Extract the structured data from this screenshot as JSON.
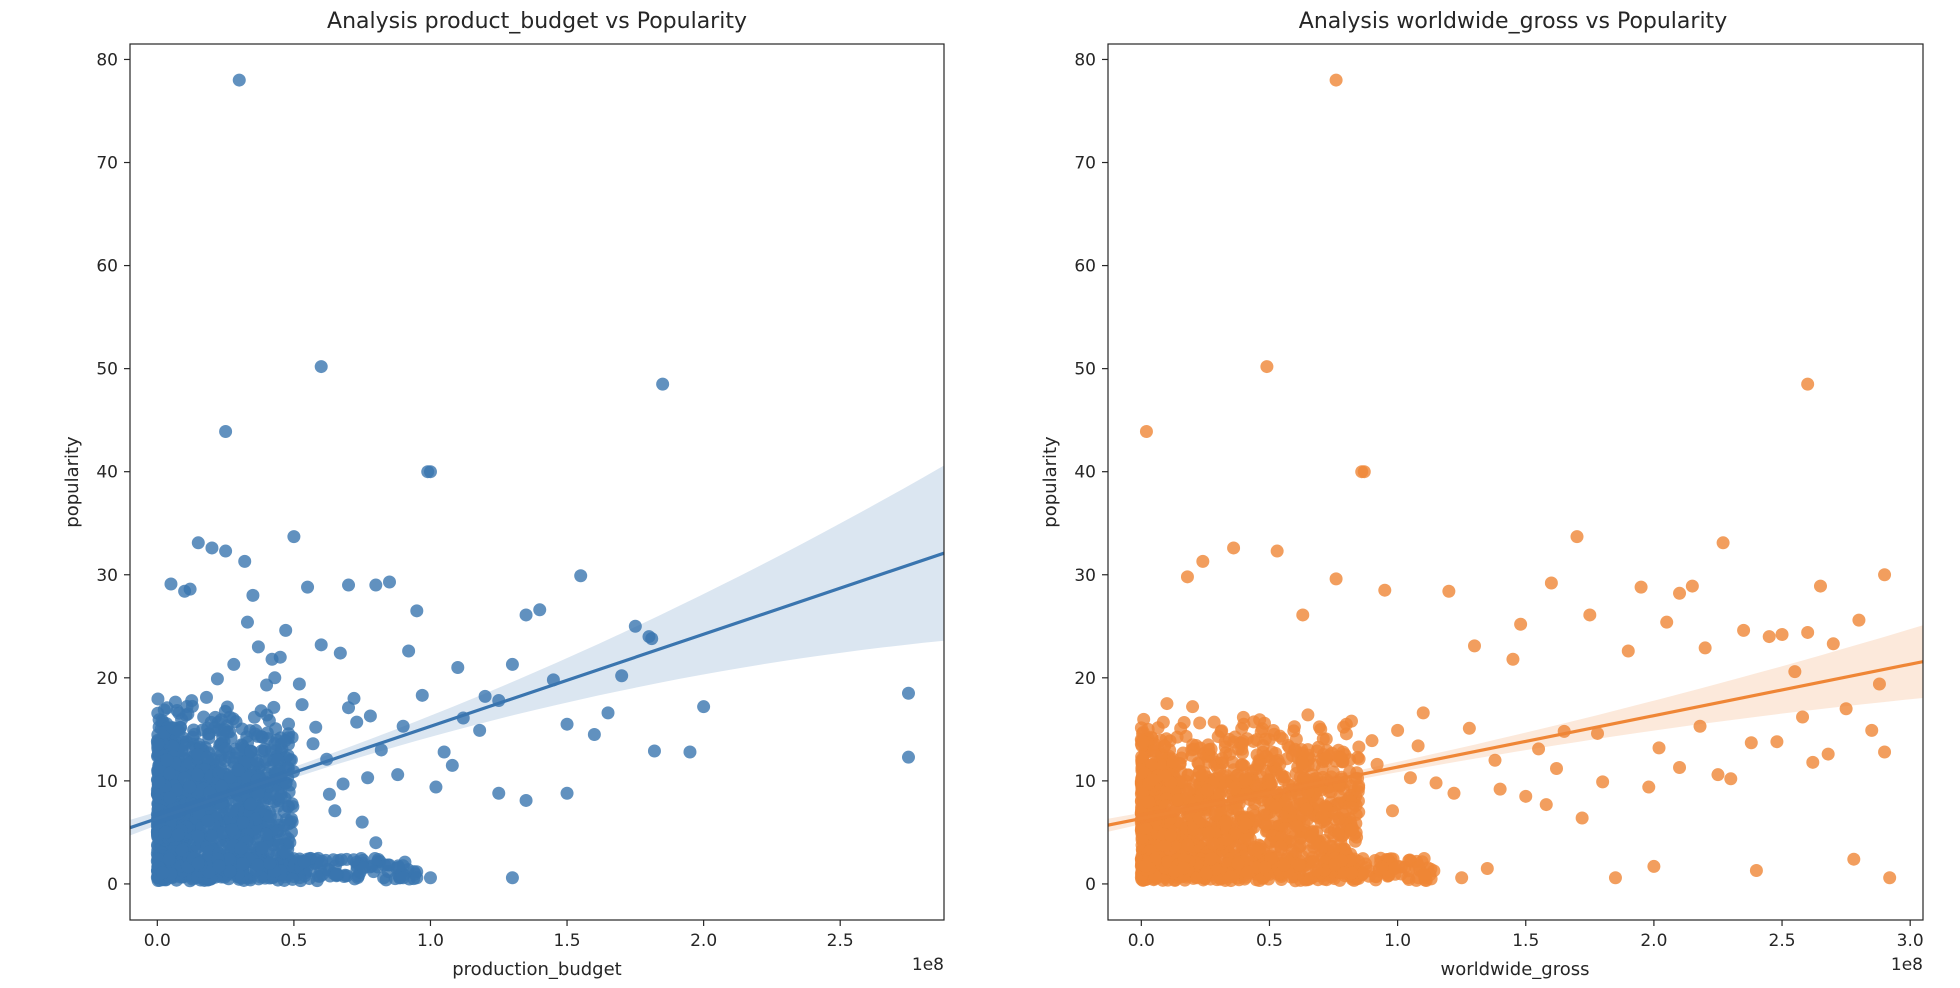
{
  "chart_data": [
    {
      "type": "scatter",
      "title": "Analysis product_budget vs Popularity",
      "xlabel": "production_budget",
      "ylabel": "popularity",
      "x_offset_label": "1e8",
      "xlim": [
        -0.1,
        2.88
      ],
      "ylim": [
        -3.5,
        81.5
      ],
      "x_ticks": [
        0.0,
        0.5,
        1.0,
        1.5,
        2.0,
        2.5
      ],
      "x_tick_labels": [
        "0.0",
        "0.5",
        "1.0",
        "1.5",
        "2.0",
        "2.5"
      ],
      "y_ticks": [
        0,
        10,
        20,
        30,
        40,
        50,
        60,
        70,
        80
      ],
      "y_tick_labels": [
        "0",
        "10",
        "20",
        "30",
        "40",
        "50",
        "60",
        "70",
        "80"
      ],
      "color": "#3a75af",
      "grid": false,
      "regression": {
        "slope": 8.94,
        "intercept": 6.35,
        "ci_half_width_at_mean": 0.5,
        "x_mean": 0.35,
        "ci_growth": 1.25
      },
      "x": [
        0.3,
        0.6,
        0.25,
        1.85,
        0.99,
        1.0,
        0.5,
        0.15,
        0.2,
        0.25,
        0.32,
        0.05,
        0.1,
        0.12,
        0.35,
        0.55,
        0.7,
        0.8,
        0.85,
        0.95,
        1.55,
        1.75,
        1.8,
        1.81,
        1.7,
        1.4,
        1.35,
        1.3,
        1.1,
        1.2,
        1.25,
        1.45,
        1.5,
        1.6,
        1.65,
        2.0,
        1.95,
        1.82,
        2.75,
        2.75,
        1.3,
        1.35,
        1.5,
        1.25,
        0.9,
        0.95,
        1.0,
        0.8,
        0.75,
        0.65,
        0.45,
        0.4,
        0.38,
        0.28,
        0.22,
        0.18,
        0.08,
        0.03,
        0.02,
        0.15,
        0.6,
        0.7,
        0.9,
        1.05,
        0.42,
        0.47,
        0.52,
        0.58,
        0.62,
        0.68,
        0.72,
        0.78,
        0.82,
        0.88,
        0.92,
        0.97,
        1.02,
        1.08,
        1.12,
        1.18,
        0.33,
        0.37,
        0.43,
        0.48,
        0.53,
        0.57,
        0.63,
        0.67,
        0.73,
        0.77
      ],
      "y": [
        78,
        50.2,
        43.9,
        48.5,
        40,
        40,
        33.7,
        33.1,
        32.6,
        32.3,
        31.3,
        29.1,
        28.4,
        28.6,
        28,
        28.8,
        29,
        29,
        29.3,
        26.5,
        29.9,
        25,
        24,
        23.8,
        20.2,
        26.6,
        26.1,
        21.3,
        21,
        18.2,
        17.8,
        19.8,
        15.5,
        14.5,
        16.6,
        17.2,
        12.8,
        12.9,
        18.5,
        12.3,
        0.6,
        8.1,
        8.8,
        8.8,
        0.6,
        0.6,
        0.6,
        4,
        6,
        7.1,
        22,
        19.3,
        16.8,
        21.3,
        19.9,
        18.1,
        14.8,
        5,
        1.1,
        2,
        23.2,
        17.1,
        15.3,
        12.8,
        21.8,
        24.6,
        19.4,
        15.2,
        12.1,
        9.7,
        18,
        16.3,
        13,
        10.6,
        22.6,
        18.3,
        9.4,
        11.5,
        16.1,
        14.9,
        25.4,
        23,
        20,
        11.2,
        17.4,
        13.6,
        8.7,
        22.4,
        15.7,
        10.3
      ],
      "dense_cluster": {
        "x_range": [
          0,
          0.5
        ],
        "y_range": [
          0.3,
          18
        ],
        "count": 1200
      }
    },
    {
      "type": "scatter",
      "title": "Analysis worldwide_gross vs Popularity",
      "xlabel": "worldwide_gross",
      "ylabel": "popularity",
      "x_offset_label": "1e8",
      "xlim": [
        -0.13,
        3.05
      ],
      "ylim": [
        -3.5,
        81.5
      ],
      "x_ticks": [
        0.0,
        0.5,
        1.0,
        1.5,
        2.0,
        2.5,
        3.0
      ],
      "x_tick_labels": [
        "0.0",
        "0.5",
        "1.0",
        "1.5",
        "2.0",
        "2.5",
        "3.0"
      ],
      "y_ticks": [
        0,
        10,
        20,
        30,
        40,
        50,
        60,
        70,
        80
      ],
      "y_tick_labels": [
        "0",
        "10",
        "20",
        "30",
        "40",
        "50",
        "60",
        "70",
        "80"
      ],
      "color": "#ef8636",
      "grid": false,
      "regression": {
        "slope": 4.99,
        "intercept": 6.35,
        "ci_half_width_at_mean": 0.4,
        "x_mean": 0.55,
        "ci_growth": 0.5
      },
      "x": [
        0.76,
        0.49,
        0.02,
        2.6,
        0.86,
        0.87,
        1.7,
        2.27,
        0.36,
        0.53,
        0.24,
        0.18,
        0.76,
        0.63,
        0.95,
        1.2,
        1.6,
        1.95,
        2.1,
        2.15,
        2.35,
        2.45,
        2.6,
        2.65,
        2.8,
        2.9,
        2.88,
        1.75,
        1.48,
        1.3,
        1.45,
        1.9,
        2.05,
        2.2,
        2.5,
        2.55,
        2.7,
        2.75,
        2.85,
        1.55,
        1.65,
        1.0,
        1.1,
        0.9,
        0.8,
        0.7,
        0.6,
        0.45,
        0.4,
        0.3,
        0.2,
        0.1,
        1.25,
        1.35,
        1.85,
        2.0,
        2.4,
        2.78,
        2.92,
        2.9,
        1.05,
        1.15,
        1.4,
        1.5,
        1.8,
        2.1,
        2.3,
        2.62,
        2.68,
        1.98,
        2.25,
        2.48,
        1.72,
        1.58,
        1.22,
        0.98,
        0.55,
        0.65,
        0.72,
        0.82,
        0.92,
        1.08,
        1.28,
        1.38,
        1.62,
        1.78,
        2.02,
        2.18,
        2.38,
        2.58
      ],
      "y": [
        78,
        50.2,
        43.9,
        48.5,
        40,
        40,
        33.7,
        33.1,
        32.6,
        32.3,
        31.3,
        29.8,
        29.6,
        26.1,
        28.5,
        28.4,
        29.2,
        28.8,
        28.2,
        28.9,
        24.6,
        24,
        24.4,
        28.9,
        25.6,
        30,
        19.4,
        26.1,
        25.2,
        23.1,
        21.8,
        22.6,
        25.4,
        22.9,
        24.2,
        20.6,
        23.3,
        17,
        14.9,
        13.1,
        14.8,
        14.9,
        16.6,
        13.9,
        15.5,
        15,
        12.9,
        14,
        15.5,
        14.3,
        17.2,
        17.5,
        0.6,
        1.5,
        0.6,
        1.7,
        1.3,
        2.4,
        0.6,
        12.8,
        10.3,
        9.8,
        9.2,
        8.5,
        9.9,
        11.3,
        10.2,
        11.8,
        12.6,
        9.4,
        10.6,
        13.8,
        6.4,
        7.7,
        8.8,
        7.1,
        14.1,
        16.4,
        12.2,
        15.8,
        11.6,
        13.4,
        15.1,
        12,
        11.2,
        14.6,
        13.2,
        15.3,
        13.7,
        16.2
      ],
      "dense_cluster": {
        "x_range": [
          0,
          0.85
        ],
        "y_range": [
          0.3,
          17
        ],
        "count": 1300
      }
    }
  ]
}
